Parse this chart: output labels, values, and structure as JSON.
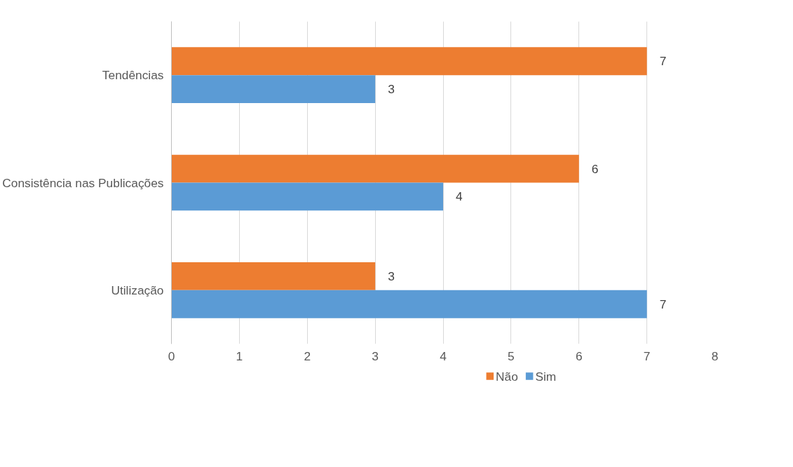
{
  "chart_data": {
    "type": "bar",
    "orientation": "horizontal",
    "categories": [
      "Tendências",
      "Consistência nas Publicações",
      "Utilização"
    ],
    "series": [
      {
        "name": "Não",
        "color": "#ed7d31",
        "values": [
          7,
          6,
          3
        ]
      },
      {
        "name": "Sim",
        "color": "#5b9bd5",
        "values": [
          3,
          4,
          7
        ]
      }
    ],
    "xlim": [
      0,
      8
    ],
    "xticks": [
      0,
      1,
      2,
      3,
      4,
      5,
      6,
      7,
      8
    ],
    "grid": "x",
    "legend": "bottom",
    "data_labels": true
  }
}
